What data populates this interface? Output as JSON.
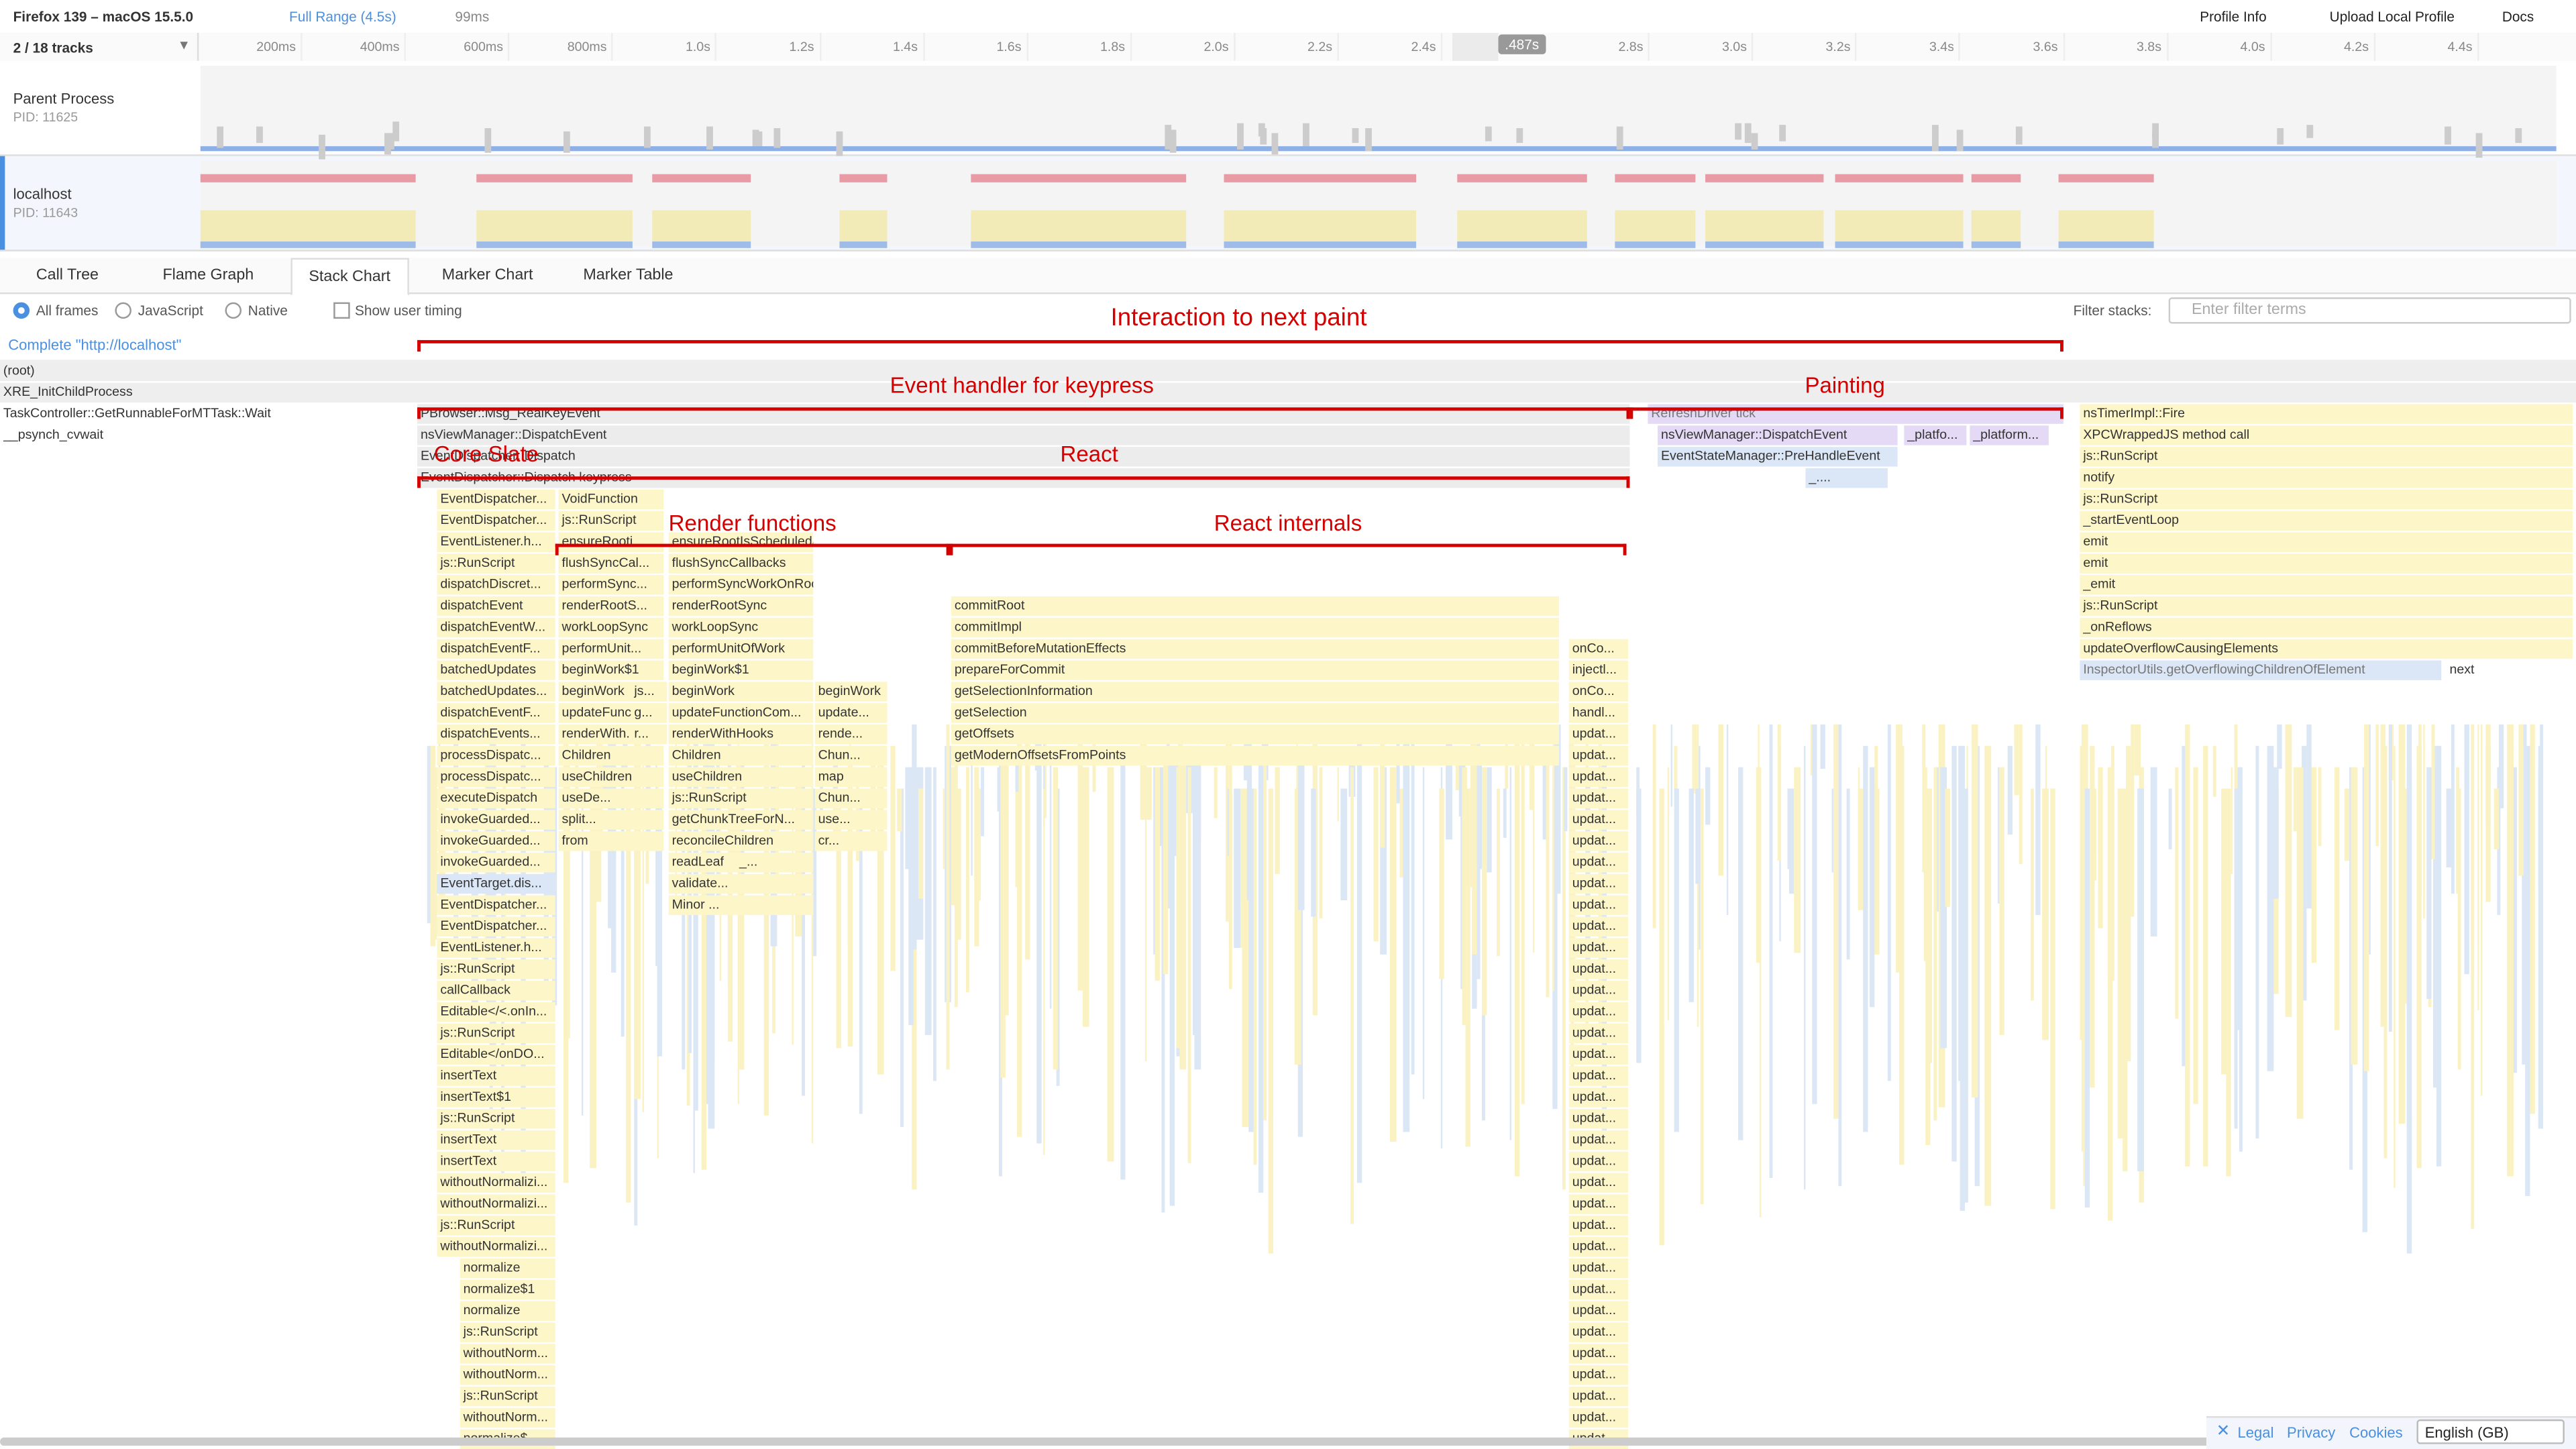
{
  "header": {
    "title": "Firefox 139 – macOS 15.5.0",
    "range": "Full Range (4.5s)",
    "selection": "99ms",
    "profile_info": "Profile Info",
    "upload": "Upload Local Profile",
    "docs": "Docs"
  },
  "timeline": {
    "tracks_count": "2 / 18 tracks",
    "xlim": [
      0,
      4.6
    ],
    "ticks": [
      {
        "value": 0.2,
        "label": "200ms"
      },
      {
        "value": 0.4,
        "label": "400ms"
      },
      {
        "value": 0.6,
        "label": "600ms"
      },
      {
        "value": 0.8,
        "label": "800ms"
      },
      {
        "value": 1.0,
        "label": "1.0s"
      },
      {
        "value": 1.2,
        "label": "1.2s"
      },
      {
        "value": 1.4,
        "label": "1.4s"
      },
      {
        "value": 1.6,
        "label": "1.6s"
      },
      {
        "value": 1.8,
        "label": "1.8s"
      },
      {
        "value": 2.0,
        "label": "2.0s"
      },
      {
        "value": 2.2,
        "label": "2.2s"
      },
      {
        "value": 2.4,
        "label": "2.4s"
      },
      {
        "value": 2.8,
        "label": "2.8s"
      },
      {
        "value": 3.0,
        "label": "3.0s"
      },
      {
        "value": 3.2,
        "label": "3.2s"
      },
      {
        "value": 3.4,
        "label": "3.4s"
      },
      {
        "value": 3.6,
        "label": "3.6s"
      },
      {
        "value": 3.8,
        "label": "3.8s"
      },
      {
        "value": 4.0,
        "label": "4.0s"
      },
      {
        "value": 4.2,
        "label": "4.2s"
      },
      {
        "value": 4.4,
        "label": "4.4s"
      }
    ],
    "selection_label": ".487s",
    "tracks": [
      {
        "name": "Parent Process",
        "pid": "PID: 11625"
      },
      {
        "name": "localhost",
        "pid": "PID: 11643"
      }
    ]
  },
  "tabs": [
    "Call Tree",
    "Flame Graph",
    "Stack Chart",
    "Marker Chart",
    "Marker Table"
  ],
  "selected_tab_index": 2,
  "options": {
    "radios": [
      "All frames",
      "JavaScript",
      "Native"
    ],
    "checkbox": "Show user timing",
    "filter_label": "Filter stacks:",
    "filter_placeholder": "Enter filter terms"
  },
  "breadcrumb": "Complete \"http://localhost\"",
  "stack_chart": {
    "left_frames": [
      "(root)",
      "XRE_InitChildProcess",
      "TaskController::GetRunnableForMTTask::Wait",
      "__psynch_cvwait"
    ],
    "columns": [
      {
        "frames": [
          "PBrowser::Msg_RealKeyEvent",
          "nsViewManager::DispatchEvent",
          "EventDispatcher::Dispatch",
          "EventDispatcher::Dispatch keypress"
        ]
      },
      {
        "frames": [
          "EventDispatcher...",
          "EventDispatcher...",
          "EventListener.h...",
          "js::RunScript",
          "dispatchDiscret...",
          "dispatchEvent",
          "dispatchEventW...",
          "dispatchEventF...",
          "batchedUpdates",
          "batchedUpdates...",
          "dispatchEventF...",
          "dispatchEvents...",
          "processDispatc...",
          "processDispatc...",
          "executeDispatch",
          "invokeGuarded...",
          "invokeGuarded...",
          "invokeGuarded...",
          "EventTarget.dis...",
          "EventDispatcher...",
          "EventDispatcher...",
          "EventListener.h...",
          "js::RunScript",
          "callCallback",
          "Editable</<.onIn...",
          "js::RunScript",
          "Editable</onDO...",
          "insertText",
          "insertText$1",
          "js::RunScript",
          "insertText",
          "insertText",
          "withoutNormalizi...",
          "withoutNormalizi...",
          "js::RunScript",
          "withoutNormalizi...",
          "normalize",
          "normalize$1",
          "normalize",
          "js::RunScript",
          "withoutNorm...",
          "withoutNorm...",
          "js::RunScript",
          "withoutNorm...",
          "normalize$..."
        ]
      },
      {
        "frames": [
          "VoidFunction",
          "js::RunScript",
          "ensureRooti...",
          "flushSyncCal...",
          "performSync...",
          "renderRootS...",
          "workLoopSync",
          "performUnit...",
          "beginWork$1",
          "beginWork",
          "updateFunc...",
          "renderWith...",
          "Children",
          "useChildren",
          "useDe...",
          "split...",
          "from"
        ]
      },
      {
        "frames": [
          "js...",
          "g...",
          "r..."
        ]
      },
      {
        "frames": [
          "ensureRootIsScheduled/<",
          "flushSyncCallbacks",
          "performSyncWorkOnRoot",
          "renderRootSync",
          "workLoopSync",
          "performUnitOfWork",
          "beginWork$1",
          "beginWork",
          "updateFunctionCom...",
          "renderWithHooks",
          "Children",
          "useChildren",
          "js::RunScript",
          "getChunkTreeForN...",
          "reconcileChildren",
          "readLeaf",
          "validate...",
          "Minor ..."
        ]
      },
      {
        "frames": [
          "_..."
        ]
      },
      {
        "frames": [
          "beginWork",
          "update...",
          "rende...",
          "Chun...",
          "map",
          "Chun...",
          "use...",
          "cr..."
        ]
      },
      {
        "frames": [
          "commitRoot",
          "commitImpl",
          "commitBeforeMutationEffects",
          "prepareForCommit",
          "getSelectionInformation",
          "getSelection",
          "getOffsets",
          "getModernOffsetsFromPoints"
        ]
      },
      {
        "frames": [
          "onCo...",
          "injectl...",
          "onCo...",
          "handl...",
          "updat...",
          "updat...",
          "updat...",
          "updat...",
          "updat...",
          "updat...",
          "updat...",
          "updat...",
          "updat...",
          "updat...",
          "updat...",
          "updat...",
          "updat...",
          "updat...",
          "updat...",
          "updat...",
          "updat...",
          "updat...",
          "updat...",
          "updat...",
          "updat...",
          "updat...",
          "updat...",
          "updat...",
          "updat...",
          "updat...",
          "updat...",
          "updat...",
          "updat...",
          "updat...",
          "updat...",
          "updat...",
          "updat...",
          "updat..."
        ]
      },
      {
        "frames": [
          "RefreshDriver tick"
        ]
      },
      {
        "frames": [
          "nsViewManager::DispatchEvent",
          "EventStateManager::PreHandleEvent",
          "_...."
        ]
      },
      {
        "frames": [
          "_platfo..."
        ]
      },
      {
        "frames": [
          "_platform..."
        ]
      },
      {
        "frames": [
          "nsTimerImpl::Fire",
          "XPCWrappedJS method call",
          "js::RunScript",
          "notify",
          "js::RunScript",
          "_startEventLoop",
          "emit",
          "emit",
          "_emit",
          "js::RunScript",
          "_onReflows",
          "updateOverflowCausingElements",
          "InspectorUtils.getOverflowingChildrenOfElement"
        ]
      },
      {
        "frames": [
          "next"
        ]
      }
    ]
  },
  "annotations": [
    "Interaction to next paint",
    "Event handler for keypress",
    "Painting",
    "Core Slate",
    "React",
    "Render functions",
    "React internals"
  ],
  "footer": {
    "links": [
      "Legal",
      "Privacy",
      "Cookies"
    ],
    "language": "English (GB)"
  }
}
